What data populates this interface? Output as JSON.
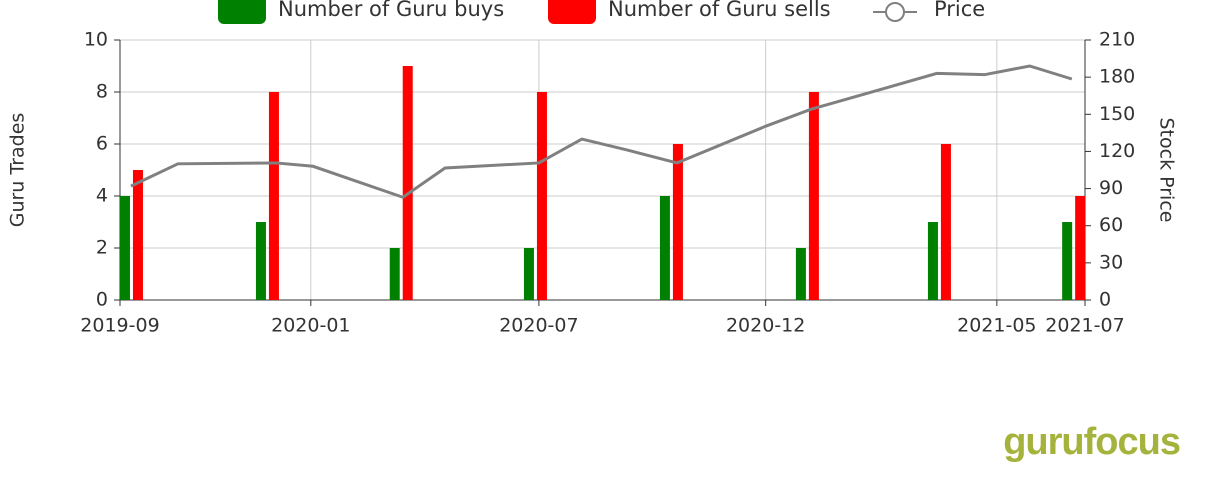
{
  "chart_data": {
    "type": "bar",
    "y_label": "Guru Trades",
    "y2_label": "Stock Price",
    "xlim": [
      0,
      22
    ],
    "xticks": [
      {
        "value": 0,
        "label": "2019-09"
      },
      {
        "value": 4.35,
        "label": "2020-01"
      },
      {
        "value": 9.55,
        "label": "2020-07"
      },
      {
        "value": 14.72,
        "label": "2020-12"
      },
      {
        "value": 19.99,
        "label": "2021-05"
      },
      {
        "value": 22,
        "label": "2021-07"
      }
    ],
    "ylim": [
      0,
      10
    ],
    "yticks": [
      0,
      2,
      4,
      6,
      8,
      10
    ],
    "y2lim": [
      0,
      210
    ],
    "y2ticks": [
      0,
      30,
      60,
      90,
      120,
      150,
      180,
      210
    ],
    "grid": true,
    "series": [
      {
        "name": "Number of Guru buys",
        "type": "bar",
        "color": "#008000",
        "x": [
          0.25,
          3.35,
          6.4,
          9.46,
          12.56,
          15.66,
          18.67,
          21.73
        ],
        "values": [
          4,
          3,
          2,
          2,
          4,
          2,
          3,
          3
        ]
      },
      {
        "name": "Number of Guru sells",
        "type": "bar",
        "color": "#ff0000",
        "x": [
          0.25,
          3.35,
          6.4,
          9.46,
          12.56,
          15.66,
          18.67,
          21.73
        ],
        "values": [
          5,
          8,
          9,
          8,
          6,
          8,
          6,
          4
        ]
      },
      {
        "name": "Price",
        "type": "line",
        "axis": "y2",
        "color": "#808080",
        "x": [
          0.25,
          1.32,
          3.56,
          4.4,
          6.45,
          7.41,
          9.55,
          10.53,
          11.58,
          12.7,
          14.73,
          15.75,
          18.62,
          19.71,
          20.74,
          21.7
        ],
        "values": [
          92,
          110,
          110.7,
          108,
          83,
          106.6,
          110.7,
          130,
          121,
          110.7,
          140.5,
          154,
          183,
          182,
          189,
          178.5
        ]
      }
    ],
    "logo": "gurufocus"
  }
}
